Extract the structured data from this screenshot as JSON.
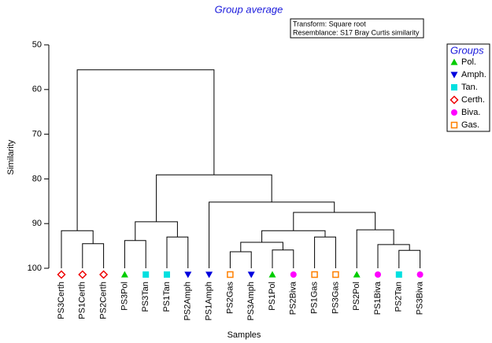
{
  "chart_data": {
    "type": "dendrogram",
    "title": "Group average",
    "notes": [
      "Transform: Square root",
      "Resemblance: S17 Bray Curtis similarity"
    ],
    "x_label": "Samples",
    "y_label": "Similarity",
    "ylim": [
      50,
      100
    ],
    "yticks": [
      50,
      60,
      70,
      80,
      90,
      100
    ],
    "inverted": true,
    "legend_title": "Groups",
    "legend_position": "right",
    "groups": [
      {
        "name": "Pol.",
        "color": "#00cc00",
        "marker": "triangle-up"
      },
      {
        "name": "Amph.",
        "color": "#0000dd",
        "marker": "triangle-down"
      },
      {
        "name": "Tan.",
        "color": "#00e0e0",
        "marker": "square"
      },
      {
        "name": "Certh.",
        "color": "#ee0000",
        "marker": "diamond-open"
      },
      {
        "name": "Biva.",
        "color": "#ff00ff",
        "marker": "circle"
      },
      {
        "name": "Gas.",
        "color": "#ff8000",
        "marker": "square-open"
      }
    ],
    "samples": [
      {
        "name": "PS3Certh",
        "group": "Certh."
      },
      {
        "name": "PS1Certh",
        "group": "Certh."
      },
      {
        "name": "PS2Certh",
        "group": "Certh."
      },
      {
        "name": "PS3Pol",
        "group": "Pol."
      },
      {
        "name": "PS3Tan",
        "group": "Tan."
      },
      {
        "name": "PS1Tan",
        "group": "Tan."
      },
      {
        "name": "PS2Amph",
        "group": "Amph."
      },
      {
        "name": "PS1Amph",
        "group": "Amph."
      },
      {
        "name": "PS2Gas",
        "group": "Gas."
      },
      {
        "name": "PS3Amph",
        "group": "Amph."
      },
      {
        "name": "PS1Pol",
        "group": "Pol."
      },
      {
        "name": "PS2Biva",
        "group": "Biva."
      },
      {
        "name": "PS1Gas",
        "group": "Gas."
      },
      {
        "name": "PS3Gas",
        "group": "Gas."
      },
      {
        "name": "PS2Pol",
        "group": "Pol."
      },
      {
        "name": "PS1Biva",
        "group": "Biva."
      },
      {
        "name": "PS2Tan",
        "group": "Tan."
      },
      {
        "name": "PS3Biva",
        "group": "Biva."
      }
    ],
    "tree": {
      "height": 55.6,
      "children": [
        {
          "height": 91.6,
          "children": [
            "PS3Certh",
            {
              "height": 94.5,
              "children": [
                "PS1Certh",
                "PS2Certh"
              ]
            }
          ]
        },
        {
          "height": 79.1,
          "children": [
            {
              "height": 89.6,
              "children": [
                {
                  "height": 93.8,
                  "children": [
                    "PS3Pol",
                    "PS3Tan"
                  ]
                },
                {
                  "height": 93.0,
                  "children": [
                    "PS1Tan",
                    "PS2Amph"
                  ]
                }
              ]
            },
            {
              "height": 85.2,
              "children": [
                "PS1Amph",
                {
                  "height": 87.5,
                  "children": [
                    {
                      "height": 91.6,
                      "children": [
                        {
                          "height": 94.2,
                          "children": [
                            {
                              "height": 96.3,
                              "children": [
                                "PS2Gas",
                                "PS3Amph"
                              ]
                            },
                            {
                              "height": 95.9,
                              "children": [
                                "PS1Pol",
                                "PS2Biva"
                              ]
                            }
                          ]
                        },
                        {
                          "height": 93.0,
                          "children": [
                            "PS1Gas",
                            "PS3Gas"
                          ]
                        }
                      ]
                    },
                    {
                      "height": 91.4,
                      "children": [
                        "PS2Pol",
                        {
                          "height": 94.7,
                          "children": [
                            "PS1Biva",
                            {
                              "height": 96.0,
                              "children": [
                                "PS2Tan",
                                "PS3Biva"
                              ]
                            }
                          ]
                        }
                      ]
                    }
                  ]
                }
              ]
            }
          ]
        }
      ]
    }
  }
}
